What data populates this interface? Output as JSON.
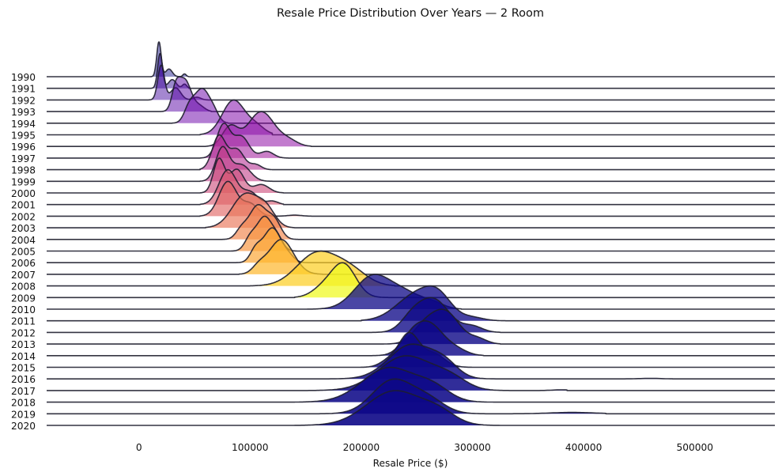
{
  "chart_data": {
    "type": "ridgeline",
    "title": "Resale Price Distribution Over Years — 2 Room",
    "xlabel": "Resale Price ($)",
    "ylabel": "",
    "xlim": [
      -83000,
      572000
    ],
    "x_ticks": [
      0,
      100000,
      200000,
      300000,
      400000,
      500000
    ],
    "x_tick_labels": [
      "0",
      "100000",
      "200000",
      "300000",
      "400000",
      "500000"
    ],
    "grid": false,
    "colormap": "plasma",
    "series": [
      {
        "name": "1990",
        "color": "#0d0887",
        "min": 10000,
        "max": 45000,
        "modes": [
          [
            18000,
            1.0,
            2000
          ],
          [
            27000,
            0.22,
            3000
          ],
          [
            41000,
            0.08,
            1500
          ]
        ]
      },
      {
        "name": "1991",
        "color": "#2a0593",
        "min": 10000,
        "max": 45000,
        "modes": [
          [
            19000,
            1.0,
            2200
          ],
          [
            30000,
            0.25,
            3500
          ],
          [
            41000,
            0.12,
            2000
          ]
        ]
      },
      {
        "name": "1992",
        "color": "#41049d",
        "min": 8000,
        "max": 62000,
        "modes": [
          [
            20000,
            1.0,
            3000
          ],
          [
            33000,
            0.35,
            4500
          ],
          [
            52000,
            0.08,
            3500
          ]
        ]
      },
      {
        "name": "1993",
        "color": "#5601a4",
        "min": 20000,
        "max": 65000,
        "modes": [
          [
            41000,
            1.0,
            6000
          ],
          [
            33000,
            0.55,
            3500
          ],
          [
            55000,
            0.15,
            4500
          ]
        ]
      },
      {
        "name": "1994",
        "color": "#6a00a8",
        "min": 30000,
        "max": 80000,
        "modes": [
          [
            57000,
            1.0,
            7500
          ],
          [
            45000,
            0.35,
            4500
          ],
          [
            68000,
            0.15,
            4000
          ]
        ]
      },
      {
        "name": "1995",
        "color": "#7e03a8",
        "min": 55000,
        "max": 120000,
        "modes": [
          [
            85000,
            1.0,
            10000
          ],
          [
            105000,
            0.25,
            8000
          ]
        ]
      },
      {
        "name": "1996",
        "color": "#8f0da4",
        "min": 60000,
        "max": 155000,
        "modes": [
          [
            110000,
            1.0,
            12000
          ],
          [
            82000,
            0.55,
            7000
          ],
          [
            135000,
            0.15,
            8000
          ]
        ]
      },
      {
        "name": "1997",
        "color": "#a01a9c",
        "min": 55000,
        "max": 135000,
        "modes": [
          [
            76000,
            1.0,
            6000
          ],
          [
            92000,
            0.65,
            7000
          ],
          [
            115000,
            0.2,
            6000
          ]
        ]
      },
      {
        "name": "1998",
        "color": "#b12a90",
        "min": 55000,
        "max": 120000,
        "modes": [
          [
            72000,
            1.0,
            6000
          ],
          [
            88000,
            0.6,
            6500
          ],
          [
            105000,
            0.15,
            5000
          ]
        ]
      },
      {
        "name": "1999",
        "color": "#bf3984",
        "min": 55000,
        "max": 125000,
        "modes": [
          [
            75000,
            1.0,
            6000
          ],
          [
            92000,
            0.5,
            8000
          ]
        ]
      },
      {
        "name": "2000",
        "color": "#cc4778",
        "min": 55000,
        "max": 130000,
        "modes": [
          [
            72000,
            1.0,
            5000
          ],
          [
            88000,
            0.7,
            6500
          ],
          [
            110000,
            0.25,
            7000
          ]
        ]
      },
      {
        "name": "2001",
        "color": "#d6556d",
        "min": 55000,
        "max": 130000,
        "modes": [
          [
            80000,
            1.0,
            8000
          ],
          [
            100000,
            0.35,
            7000
          ],
          [
            120000,
            0.1,
            5000
          ]
        ]
      },
      {
        "name": "2002",
        "color": "#e16462",
        "min": 55000,
        "max": 155000,
        "modes": [
          [
            80000,
            1.0,
            8000
          ],
          [
            100000,
            0.35,
            7000
          ],
          [
            140000,
            0.03,
            6000
          ]
        ]
      },
      {
        "name": "2003",
        "color": "#ea7457",
        "min": 60000,
        "max": 140000,
        "modes": [
          [
            96000,
            1.0,
            12000
          ],
          [
            115000,
            0.45,
            8000
          ]
        ]
      },
      {
        "name": "2004",
        "color": "#f2844b",
        "min": 75000,
        "max": 145000,
        "modes": [
          [
            107000,
            1.0,
            8000
          ],
          [
            122000,
            0.5,
            6000
          ],
          [
            92000,
            0.25,
            5000
          ]
        ]
      },
      {
        "name": "2005",
        "color": "#f89540",
        "min": 80000,
        "max": 145000,
        "modes": [
          [
            113000,
            1.0,
            7000
          ],
          [
            100000,
            0.35,
            5000
          ],
          [
            125000,
            0.3,
            5000
          ]
        ]
      },
      {
        "name": "2006",
        "color": "#fca636",
        "min": 85000,
        "max": 160000,
        "modes": [
          [
            120000,
            1.0,
            8000
          ],
          [
            105000,
            0.35,
            5000
          ],
          [
            135000,
            0.15,
            5000
          ]
        ]
      },
      {
        "name": "2007",
        "color": "#feb72d",
        "min": 90000,
        "max": 165000,
        "modes": [
          [
            128000,
            1.0,
            11000
          ],
          [
            108000,
            0.2,
            6000
          ]
        ]
      },
      {
        "name": "2008",
        "color": "#fcce25",
        "min": 100000,
        "max": 230000,
        "modes": [
          [
            160000,
            1.0,
            18000
          ],
          [
            190000,
            0.45,
            15000
          ]
        ]
      },
      {
        "name": "2009",
        "color": "#f0f921",
        "min": 140000,
        "max": 230000,
        "modes": [
          [
            184000,
            1.0,
            11000
          ],
          [
            165000,
            0.25,
            10000
          ]
        ]
      },
      {
        "name": "2010",
        "color": "#0d0887",
        "min": 150000,
        "max": 290000,
        "modes": [
          [
            210000,
            1.0,
            16000
          ],
          [
            240000,
            0.45,
            15000
          ],
          [
            265000,
            0.15,
            10000
          ]
        ]
      },
      {
        "name": "2011",
        "color": "#0d0887",
        "min": 200000,
        "max": 330000,
        "modes": [
          [
            250000,
            1.0,
            18000
          ],
          [
            270000,
            0.65,
            12000
          ],
          [
            300000,
            0.12,
            10000
          ]
        ]
      },
      {
        "name": "2012",
        "color": "#0d0887",
        "min": 200000,
        "max": 325000,
        "modes": [
          [
            265000,
            1.0,
            14000
          ],
          [
            245000,
            0.35,
            10000
          ],
          [
            300000,
            0.18,
            9000
          ]
        ]
      },
      {
        "name": "2013",
        "color": "#0d0887",
        "min": 220000,
        "max": 325000,
        "modes": [
          [
            275000,
            1.0,
            13000
          ],
          [
            255000,
            0.4,
            10000
          ],
          [
            305000,
            0.15,
            8000
          ]
        ]
      },
      {
        "name": "2014",
        "color": "#0d0887",
        "min": 200000,
        "max": 310000,
        "modes": [
          [
            262000,
            1.0,
            12000
          ],
          [
            245000,
            0.55,
            10000
          ],
          [
            285000,
            0.2,
            10000
          ]
        ]
      },
      {
        "name": "2015",
        "color": "#0d0887",
        "min": 185000,
        "max": 305000,
        "modes": [
          [
            243000,
            1.0,
            9000
          ],
          [
            265000,
            0.4,
            10000
          ],
          [
            225000,
            0.2,
            8000
          ]
        ]
      },
      {
        "name": "2016",
        "color": "#0d0887",
        "min": 150000,
        "max": 480000,
        "modes": [
          [
            245000,
            1.0,
            20000
          ],
          [
            275000,
            0.35,
            12000
          ],
          [
            460000,
            0.015,
            10000
          ]
        ]
      },
      {
        "name": "2017",
        "color": "#0d0887",
        "min": 150000,
        "max": 385000,
        "modes": [
          [
            240000,
            1.0,
            24000
          ],
          [
            280000,
            0.3,
            15000
          ],
          [
            380000,
            0.02,
            8000
          ]
        ]
      },
      {
        "name": "2018",
        "color": "#0d0887",
        "min": 140000,
        "max": 330000,
        "modes": [
          [
            225000,
            1.0,
            24000
          ],
          [
            265000,
            0.35,
            15000
          ]
        ]
      },
      {
        "name": "2019",
        "color": "#0d0887",
        "min": 150000,
        "max": 420000,
        "modes": [
          [
            228000,
            1.0,
            18000
          ],
          [
            260000,
            0.4,
            15000
          ],
          [
            390000,
            0.04,
            20000
          ]
        ]
      },
      {
        "name": "2020",
        "color": "#0d0887",
        "min": 140000,
        "max": 340000,
        "modes": [
          [
            230000,
            1.0,
            25000
          ],
          [
            270000,
            0.3,
            15000
          ]
        ]
      }
    ]
  }
}
